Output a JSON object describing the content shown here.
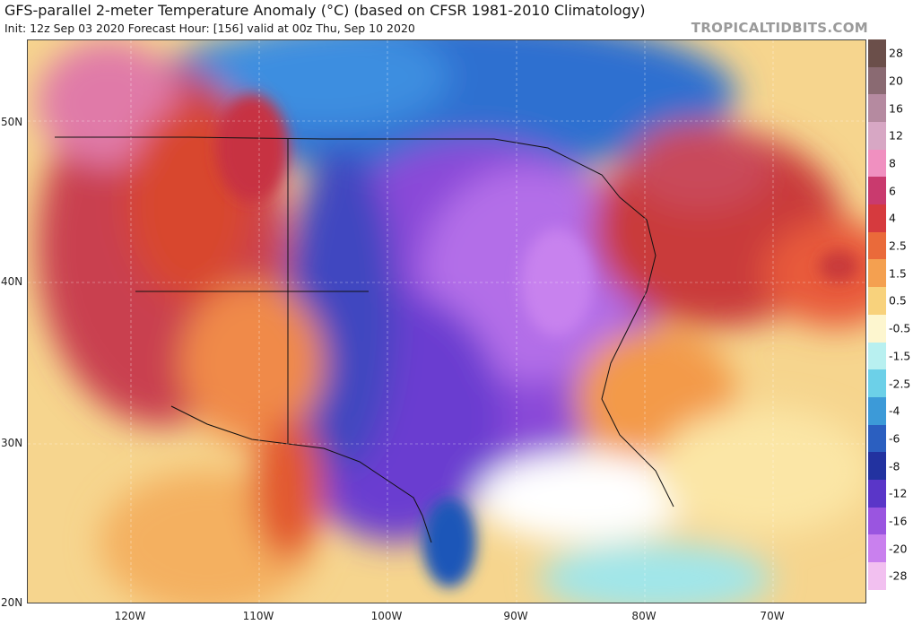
{
  "header": {
    "title": "GFS-parallel 2-meter Temperature Anomaly (°C) (based on CFSR 1981-2010 Climatology)",
    "subtitle": "Init: 12z Sep 03 2020   Forecast Hour: [156]   valid at 00z Thu, Sep 10 2020",
    "brand": "TROPICALTIDBITS.COM"
  },
  "map": {
    "lat_labels": [
      "50N",
      "40N",
      "30N",
      "20N"
    ],
    "lon_labels": [
      "120W",
      "110W",
      "100W",
      "90W",
      "80W",
      "70W"
    ]
  },
  "colorbar": {
    "labels": [
      "28",
      "20",
      "16",
      "12",
      "8",
      "6",
      "4",
      "2.5",
      "1.5",
      "0.5",
      "-0.5",
      "-1.5",
      "-2.5",
      "-4",
      "-6",
      "-8",
      "-12",
      "-16",
      "-20",
      "-28"
    ],
    "colors": [
      "#6b4f4a",
      "#8a6a72",
      "#b58aa0",
      "#d7a7c4",
      "#f090c0",
      "#c93a6e",
      "#d63a3e",
      "#ea6a3a",
      "#f4a050",
      "#f8d27c",
      "#fdf6cf",
      "#b8f0f0",
      "#6cd0e8",
      "#3c9ad8",
      "#2b5fc0",
      "#2232a0",
      "#5a36c8",
      "#9a55e0",
      "#c980ee",
      "#f2c0f0"
    ]
  }
}
